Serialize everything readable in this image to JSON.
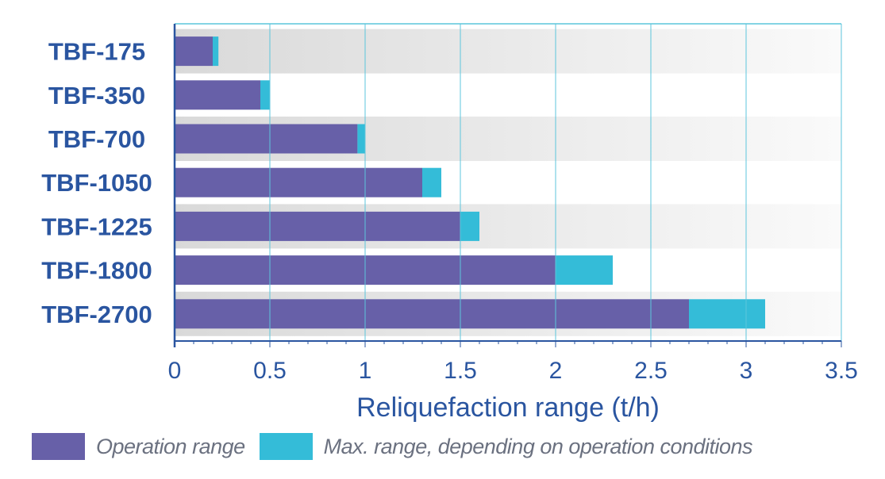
{
  "chart_data": {
    "type": "bar",
    "orientation": "horizontal",
    "stacked": true,
    "categories": [
      "TBF-175",
      "TBF-350",
      "TBF-700",
      "TBF-1050",
      "TBF-1225",
      "TBF-1800",
      "TBF-2700"
    ],
    "series": [
      {
        "name": "Operation range",
        "values": [
          0.2,
          0.45,
          0.96,
          1.3,
          1.5,
          2.0,
          2.7
        ]
      },
      {
        "name": "Max. range, depending on operation conditions",
        "values": [
          0.03,
          0.05,
          0.04,
          0.1,
          0.1,
          0.3,
          0.4
        ]
      }
    ],
    "xlabel": "Reliquefaction range (t/h)",
    "ylabel": "",
    "xlim": [
      0,
      3.5
    ],
    "xticks": [
      "0",
      "0.5",
      "1",
      "1.5",
      "2",
      "2.5",
      "3",
      "3.5"
    ],
    "grid": true,
    "legend_position": "bottom",
    "colors": {
      "operation": "#6760a8",
      "max": "#34bcd8",
      "axis": "#2a55a0",
      "grid": "#5cc6dc"
    }
  }
}
